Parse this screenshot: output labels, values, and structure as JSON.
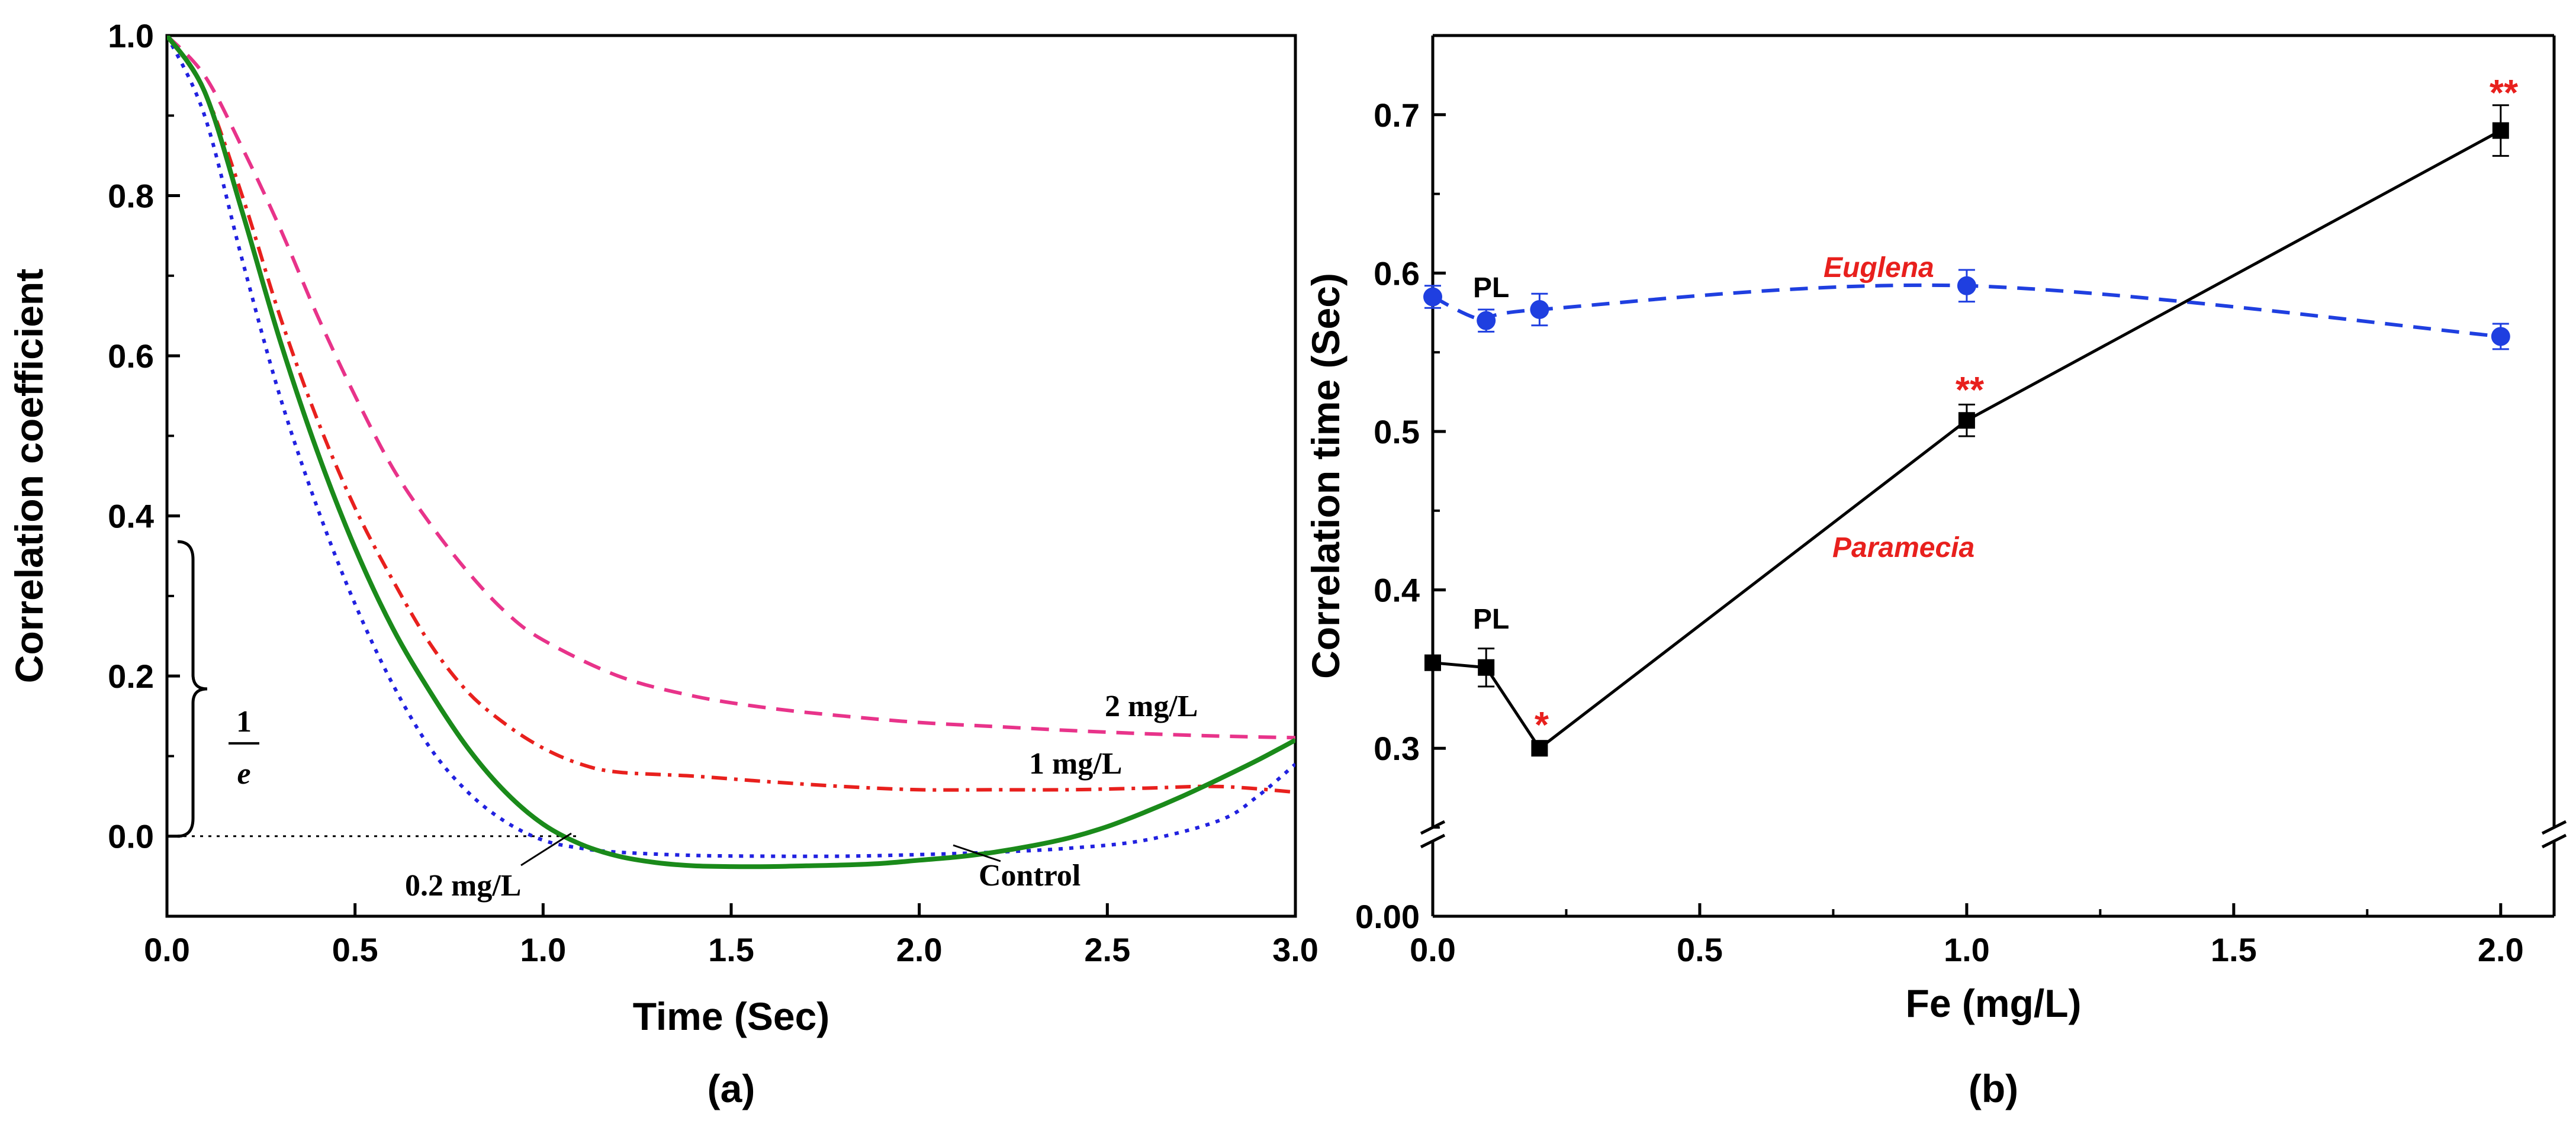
{
  "chart_data": [
    {
      "type": "line",
      "panel_label": "(a)",
      "xlabel": "Time (Sec)",
      "ylabel": "Correlation coefficient",
      "xlim": [
        0.0,
        3.0
      ],
      "ylim": [
        -0.1,
        1.0
      ],
      "xticks": [
        "0.0",
        "0.5",
        "1.0",
        "1.5",
        "2.0",
        "2.5",
        "3.0"
      ],
      "yticks": [
        "0.0",
        "0.2",
        "0.4",
        "0.6",
        "0.8",
        "1.0"
      ],
      "reference_line": {
        "y": 0.0,
        "style": "dotted"
      },
      "brace_label": {
        "numerator": "1",
        "denominator": "e"
      },
      "series": [
        {
          "name": "Control",
          "label": "Control",
          "color": "#1a8a1a",
          "style": "solid",
          "x": [
            0.0,
            0.1,
            0.2,
            0.3,
            0.4,
            0.5,
            0.6,
            0.7,
            0.8,
            0.9,
            1.0,
            1.1,
            1.2,
            1.3,
            1.4,
            1.5,
            1.6,
            1.7,
            1.8,
            1.9,
            2.0,
            2.1,
            2.2,
            2.3,
            2.4,
            2.5,
            2.6,
            2.7,
            2.8,
            2.9,
            3.0
          ],
          "y": [
            1.0,
            0.93,
            0.78,
            0.62,
            0.48,
            0.36,
            0.26,
            0.18,
            0.11,
            0.055,
            0.015,
            -0.01,
            -0.025,
            -0.033,
            -0.037,
            -0.038,
            -0.038,
            -0.037,
            -0.036,
            -0.034,
            -0.03,
            -0.026,
            -0.02,
            -0.012,
            -0.002,
            0.012,
            0.03,
            0.05,
            0.072,
            0.095,
            0.12
          ]
        },
        {
          "name": "0.2 mg/L",
          "label": "0.2 mg/L",
          "color": "#2121e0",
          "style": "dotted",
          "x": [
            0.0,
            0.1,
            0.2,
            0.3,
            0.4,
            0.5,
            0.6,
            0.7,
            0.8,
            0.9,
            1.0,
            1.1,
            1.2,
            1.4,
            1.6,
            1.8,
            2.0,
            2.2,
            2.4,
            2.6,
            2.8,
            2.9,
            3.0
          ],
          "y": [
            1.0,
            0.9,
            0.72,
            0.55,
            0.41,
            0.29,
            0.19,
            0.11,
            0.055,
            0.018,
            -0.005,
            -0.015,
            -0.02,
            -0.024,
            -0.025,
            -0.025,
            -0.023,
            -0.02,
            -0.015,
            -0.005,
            0.02,
            0.05,
            0.09
          ]
        },
        {
          "name": "1 mg/L",
          "label": "1 mg/L",
          "color": "#e8201d",
          "style": "dashdot",
          "x": [
            0.0,
            0.1,
            0.2,
            0.3,
            0.4,
            0.5,
            0.6,
            0.7,
            0.8,
            0.9,
            1.0,
            1.1,
            1.2,
            1.4,
            1.6,
            1.8,
            2.0,
            2.2,
            2.4,
            2.6,
            2.8,
            3.0
          ],
          "y": [
            1.0,
            0.93,
            0.8,
            0.65,
            0.52,
            0.41,
            0.32,
            0.24,
            0.18,
            0.14,
            0.11,
            0.09,
            0.08,
            0.075,
            0.068,
            0.062,
            0.058,
            0.058,
            0.058,
            0.06,
            0.062,
            0.055
          ]
        },
        {
          "name": "2 mg/L",
          "label": "2 mg/L",
          "color": "#e8338a",
          "style": "dashed",
          "x": [
            0.0,
            0.1,
            0.2,
            0.3,
            0.4,
            0.5,
            0.6,
            0.7,
            0.8,
            0.9,
            1.0,
            1.2,
            1.4,
            1.6,
            1.8,
            2.0,
            2.2,
            2.4,
            2.6,
            2.8,
            3.0
          ],
          "y": [
            1.0,
            0.95,
            0.86,
            0.76,
            0.65,
            0.55,
            0.46,
            0.39,
            0.33,
            0.28,
            0.245,
            0.2,
            0.175,
            0.16,
            0.15,
            0.142,
            0.137,
            0.132,
            0.128,
            0.125,
            0.123
          ]
        }
      ]
    },
    {
      "type": "line",
      "panel_label": "(b)",
      "xlabel": "Fe (mg/L)",
      "ylabel": "Correlation time (Sec)",
      "xlim": [
        0.0,
        2.1
      ],
      "ylim": [
        0.0,
        0.75
      ],
      "axis_break": true,
      "xticks": [
        "0.0",
        "0.5",
        "1.0",
        "1.5",
        "2.0"
      ],
      "yticks": [
        "0.00",
        "0.3",
        "0.4",
        "0.5",
        "0.6",
        "0.7"
      ],
      "series": [
        {
          "name": "Euglena",
          "label": "Euglena",
          "color": "#1f3fe0",
          "style": "dashed",
          "marker": "circle",
          "x": [
            0.0,
            0.1,
            0.2,
            1.0,
            2.0
          ],
          "y": [
            0.585,
            0.57,
            0.577,
            0.592,
            0.56
          ],
          "err": [
            0.007,
            0.007,
            0.01,
            0.01,
            0.008
          ]
        },
        {
          "name": "Paramecia",
          "label": "Paramecia",
          "color": "#000000",
          "style": "solid",
          "marker": "square",
          "x": [
            0.0,
            0.1,
            0.2,
            1.0,
            2.0
          ],
          "y": [
            0.354,
            0.351,
            0.3,
            0.507,
            0.69
          ],
          "err": [
            0.0,
            0.012,
            0.0,
            0.01,
            0.016
          ]
        }
      ],
      "annotations": [
        {
          "text": "PL",
          "series": "Euglena"
        },
        {
          "text": "PL",
          "series": "Paramecia"
        },
        {
          "text": "*",
          "x": 0.2,
          "series": "Paramecia"
        },
        {
          "text": "**",
          "x": 1.0,
          "series": "Paramecia"
        },
        {
          "text": "**",
          "x": 2.0,
          "series": "Paramecia"
        }
      ]
    }
  ]
}
